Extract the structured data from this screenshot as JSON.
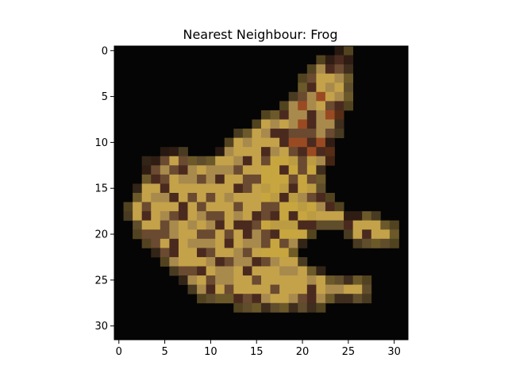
{
  "chart_data": {
    "type": "heatmap",
    "title": "Nearest Neighbour: Frog",
    "xlabel": "",
    "ylabel": "",
    "image_size": [
      32,
      32
    ],
    "xlim": [
      -0.5,
      31.5
    ],
    "ylim": [
      31.5,
      -0.5
    ],
    "x_ticks": [
      0,
      5,
      10,
      15,
      20,
      25,
      30
    ],
    "y_ticks": [
      0,
      5,
      10,
      15,
      20,
      25,
      30
    ],
    "grid": false,
    "colors": {
      "background": "#050505",
      "body_light": "#c4a24a",
      "body_mid": "#a98a4d",
      "body_dark": "#6a4a30",
      "spot": "#4a2a1e",
      "yellow": "#c9a83a",
      "red": "#9a4a22"
    }
  }
}
